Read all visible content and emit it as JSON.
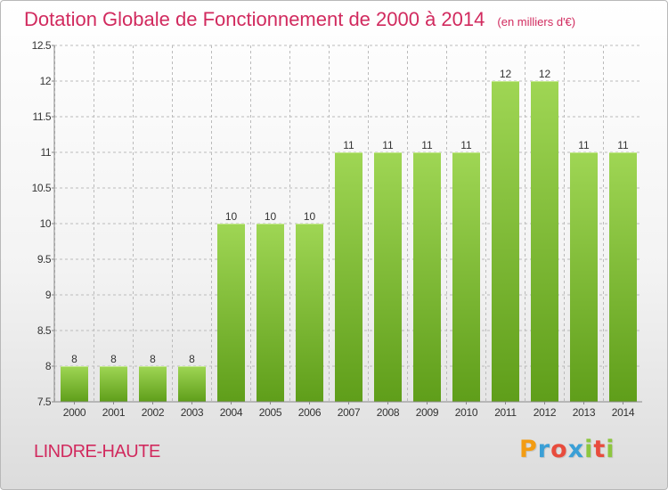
{
  "header": {
    "title": "Dotation Globale de Fonctionnement de 2000 à 2014",
    "unit": "(en milliers d'€)"
  },
  "footer": {
    "commune": "LINDRE-HAUTE",
    "logo_letters": [
      "P",
      "r",
      "o",
      "x",
      "i",
      "t",
      "i"
    ],
    "logo_colors": [
      "#f39c12",
      "#3a9fd6",
      "#e84c3d",
      "#3a9fd6",
      "#8dc63f",
      "#e84c3d",
      "#8dc63f"
    ]
  },
  "colors": {
    "title": "#d12a5e",
    "bar_top": "#9fd654",
    "bar_bottom": "#5f9e1a",
    "grid": "#bbbbbb",
    "axis_text": "#333333"
  },
  "chart_data": {
    "type": "bar",
    "categories": [
      "2000",
      "2001",
      "2002",
      "2003",
      "2004",
      "2005",
      "2006",
      "2007",
      "2008",
      "2009",
      "2010",
      "2011",
      "2012",
      "2013",
      "2014"
    ],
    "values": [
      8,
      8,
      8,
      8,
      10,
      10,
      10,
      11,
      11,
      11,
      11,
      12,
      12,
      11,
      11
    ],
    "data_labels": [
      "8",
      "8",
      "8",
      "8",
      "10",
      "10",
      "10",
      "11",
      "11",
      "11",
      "11",
      "12",
      "12",
      "11",
      "11"
    ],
    "yticks": [
      7.5,
      8,
      8.5,
      9,
      9.5,
      10,
      10.5,
      11,
      11.5,
      12,
      12.5
    ],
    "ytick_labels": [
      "7.5",
      "8",
      "8.5",
      "9",
      "9.5",
      "10",
      "10.5",
      "11",
      "11.5",
      "12",
      "12.5"
    ],
    "ylim": [
      7.5,
      12.5
    ],
    "grid": true
  }
}
